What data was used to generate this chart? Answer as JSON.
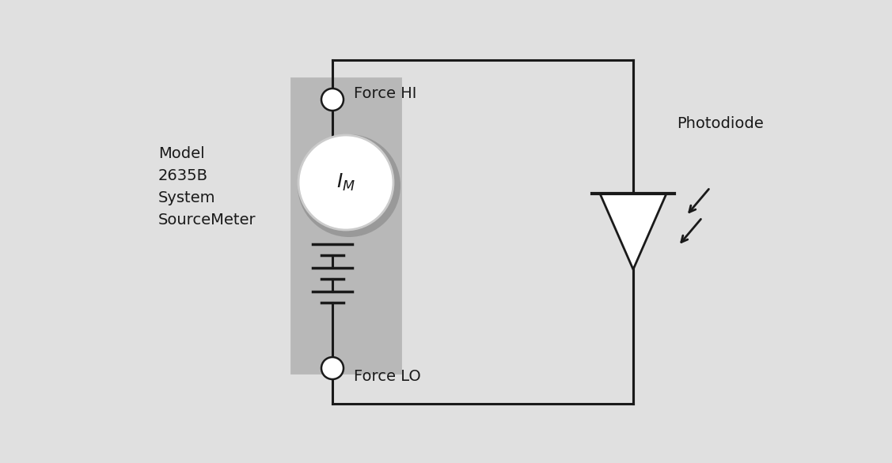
{
  "bg_color": "#e0e0e0",
  "line_color": "#1a1a1a",
  "box_fill": "#b8b8b8",
  "box_white_border": "#e0e0e0",
  "label_model": "Model\n2635B\nSystem\nSourceMeter",
  "label_force_hi": "Force HI",
  "label_force_lo": "Force LO",
  "label_photodiode": "Photodiode",
  "ammeter_label": "$I_M$",
  "fig_w": 11.27,
  "fig_h": 5.86,
  "dpi": 100
}
